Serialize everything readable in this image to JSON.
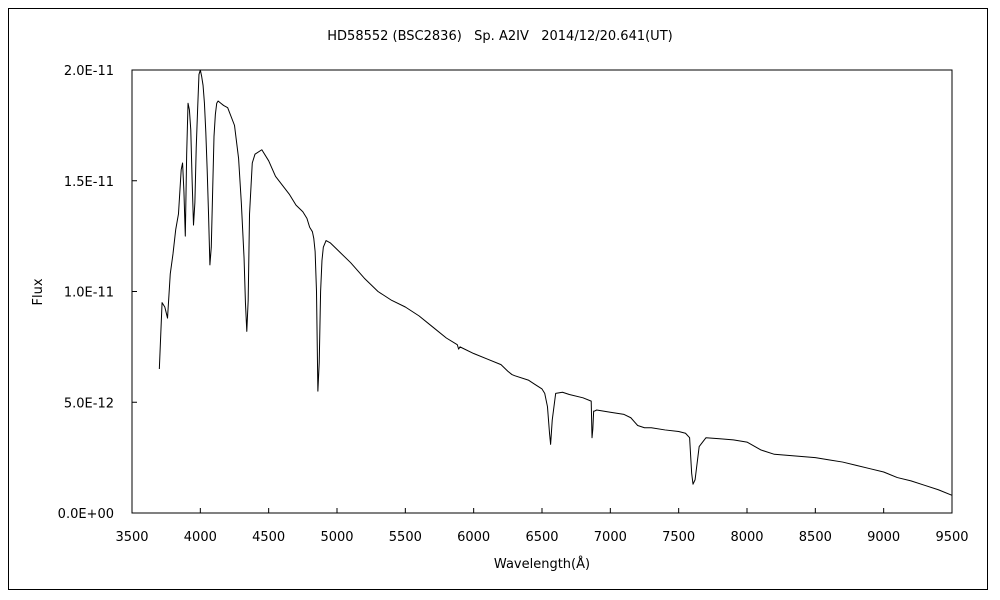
{
  "chart_data": {
    "type": "line",
    "title": "HD58552 (BSC2836)   Sp. A2IV   2014/12/20.641(UT)",
    "xlabel": "Wavelength(Å)",
    "ylabel": "Flux",
    "xlim": [
      3500,
      9500
    ],
    "ylim": [
      0,
      2e-11
    ],
    "x_ticks": [
      3500,
      4000,
      4500,
      5000,
      5500,
      6000,
      6500,
      7000,
      7500,
      8000,
      8500,
      9000,
      9500
    ],
    "x_tick_labels": [
      "3500",
      "4000",
      "4500",
      "5000",
      "5500",
      "6000",
      "6500",
      "7000",
      "7500",
      "8000",
      "8500",
      "9000",
      "9500"
    ],
    "y_ticks": [
      0,
      5e-12,
      1e-11,
      1.5e-11,
      2e-11
    ],
    "y_tick_labels": [
      "0.0E+00",
      "5.0E-12",
      "1.0E-11",
      "1.5E-11",
      "2.0E-11"
    ],
    "grid": false,
    "series": [
      {
        "line_color": "#000000",
        "x": [
          3700,
          3720,
          3740,
          3760,
          3780,
          3800,
          3820,
          3840,
          3860,
          3870,
          3880,
          3890,
          3900,
          3910,
          3920,
          3930,
          3940,
          3950,
          3960,
          3970,
          3980,
          3990,
          4000,
          4010,
          4020,
          4030,
          4040,
          4050,
          4060,
          4070,
          4080,
          4090,
          4100,
          4110,
          4120,
          4130,
          4150,
          4170,
          4200,
          4250,
          4280,
          4300,
          4320,
          4330,
          4340,
          4350,
          4360,
          4380,
          4400,
          4450,
          4500,
          4550,
          4600,
          4650,
          4700,
          4750,
          4780,
          4800,
          4820,
          4830,
          4840,
          4850,
          4860,
          4870,
          4880,
          4890,
          4900,
          4920,
          4950,
          5000,
          5100,
          5200,
          5300,
          5400,
          5500,
          5600,
          5700,
          5800,
          5880,
          5890,
          5900,
          6000,
          6100,
          6200,
          6250,
          6280,
          6300,
          6400,
          6450,
          6500,
          6520,
          6540,
          6555,
          6563,
          6575,
          6600,
          6650,
          6700,
          6800,
          6860,
          6866,
          6872,
          6878,
          6885,
          6900,
          7000,
          7100,
          7150,
          7200,
          7250,
          7300,
          7400,
          7500,
          7550,
          7580,
          7595,
          7605,
          7620,
          7650,
          7700,
          7800,
          7900,
          8000,
          8100,
          8200,
          8300,
          8400,
          8500,
          8600,
          8700,
          8800,
          8900,
          9000,
          9100,
          9200,
          9300,
          9400,
          9500
        ],
        "y": [
          6.5e-12,
          9.5e-12,
          9.3e-12,
          8.8e-12,
          1.08e-11,
          1.17e-11,
          1.28e-11,
          1.35e-11,
          1.55e-11,
          1.58e-11,
          1.45e-11,
          1.25e-11,
          1.62e-11,
          1.85e-11,
          1.82e-11,
          1.73e-11,
          1.5e-11,
          1.3e-11,
          1.4e-11,
          1.65e-11,
          1.82e-11,
          1.98e-11,
          2e-11,
          1.97e-11,
          1.93e-11,
          1.85e-11,
          1.72e-11,
          1.55e-11,
          1.35e-11,
          1.12e-11,
          1.2e-11,
          1.45e-11,
          1.7e-11,
          1.8e-11,
          1.85e-11,
          1.86e-11,
          1.85e-11,
          1.84e-11,
          1.83e-11,
          1.75e-11,
          1.6e-11,
          1.4e-11,
          1.15e-11,
          9.5e-12,
          8.2e-12,
          9.6e-12,
          1.35e-11,
          1.58e-11,
          1.62e-11,
          1.64e-11,
          1.59e-11,
          1.52e-11,
          1.48e-11,
          1.44e-11,
          1.39e-11,
          1.36e-11,
          1.33e-11,
          1.29e-11,
          1.27e-11,
          1.24e-11,
          1.18e-11,
          1e-11,
          5.5e-12,
          6.8e-12,
          1e-11,
          1.14e-11,
          1.2e-11,
          1.23e-11,
          1.22e-11,
          1.19e-11,
          1.13e-11,
          1.06e-11,
          1e-11,
          9.6e-12,
          9.3e-12,
          8.9e-12,
          8.4e-12,
          7.9e-12,
          7.6e-12,
          7.4e-12,
          7.5e-12,
          7.2e-12,
          6.95e-12,
          6.7e-12,
          6.4e-12,
          6.25e-12,
          6.2e-12,
          6e-12,
          5.8e-12,
          5.6e-12,
          5.4e-12,
          4.8e-12,
          3.6e-12,
          3.1e-12,
          4.2e-12,
          5.4e-12,
          5.45e-12,
          5.35e-12,
          5.2e-12,
          5.05e-12,
          3.4e-12,
          3.8e-12,
          4.6e-12,
          4.6e-12,
          4.65e-12,
          4.55e-12,
          4.45e-12,
          4.3e-12,
          3.95e-12,
          3.85e-12,
          3.85e-12,
          3.75e-12,
          3.68e-12,
          3.6e-12,
          3.4e-12,
          1.8e-12,
          1.3e-12,
          1.5e-12,
          3e-12,
          3.4e-12,
          3.35e-12,
          3.3e-12,
          3.2e-12,
          2.85e-12,
          2.65e-12,
          2.6e-12,
          2.55e-12,
          2.5e-12,
          2.4e-12,
          2.3e-12,
          2.15e-12,
          2e-12,
          1.85e-12,
          1.6e-12,
          1.45e-12,
          1.25e-12,
          1.05e-12,
          8e-13
        ]
      }
    ]
  }
}
